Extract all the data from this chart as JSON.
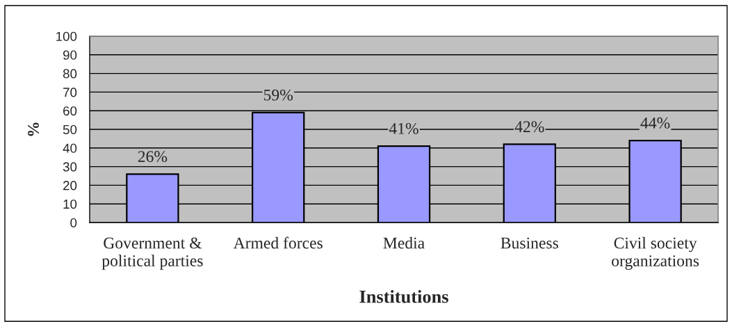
{
  "chart_data": {
    "type": "bar",
    "xlabel": "Institutions",
    "ylabel": "%",
    "categories": [
      "Government &\npolitical parties",
      "Armed forces",
      "Media",
      "Business",
      "Civil society\norganizations"
    ],
    "values": [
      26,
      59,
      41,
      42,
      44
    ],
    "color": "#9999ff",
    "value_labels": [
      "26%",
      "59%",
      "41%",
      "42%",
      "44%"
    ],
    "ylim": [
      0,
      100
    ],
    "yticks": [
      0,
      10,
      20,
      30,
      40,
      50,
      60,
      70,
      80,
      90,
      100
    ],
    "grid": "y",
    "legend": false
  }
}
